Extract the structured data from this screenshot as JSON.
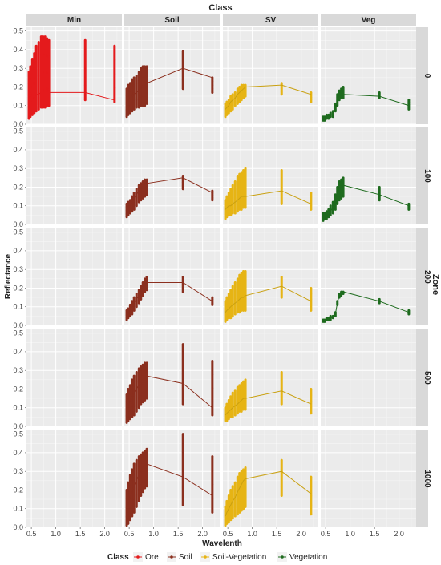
{
  "chart_data": {
    "type": "line",
    "facet_col_title": "Class",
    "facet_row_title": "Zone",
    "xlabel": "Wavelenth",
    "ylabel": "Reflectance",
    "xlim": [
      0.4,
      2.35
    ],
    "ylim": [
      0,
      0.52
    ],
    "x_ticks": [
      0.5,
      1.0,
      1.5,
      2.0
    ],
    "x_tick_labels": [
      "0.5",
      "1.0",
      "1.5",
      "2.0"
    ],
    "y_ticks": [
      0.0,
      0.1,
      0.2,
      0.3,
      0.4,
      0.5
    ],
    "y_tick_labels": [
      "0.0",
      "0.1",
      "0.2",
      "0.3",
      "0.4",
      "0.5"
    ],
    "grid": true,
    "legend": {
      "title": "Class",
      "position": "bottom",
      "items": [
        {
          "label": "Ore",
          "color": "#e41a1c"
        },
        {
          "label": "Soil",
          "color": "#8b2f1e"
        },
        {
          "label": "Soil-Vegetation",
          "color": "#e6b415"
        },
        {
          "label": "Vegetation",
          "color": "#1e6b1e"
        }
      ]
    },
    "columns": [
      "Min",
      "Soil",
      "SV",
      "Veg"
    ],
    "rows": [
      "0",
      "100",
      "200",
      "500",
      "1000"
    ],
    "bands": [
      0.45,
      0.48,
      0.52,
      0.56,
      0.6,
      0.65,
      0.7,
      0.74,
      0.78,
      0.82,
      0.86,
      1.6,
      2.2
    ],
    "panels": [
      {
        "col": "Min",
        "row": "0",
        "color": "#e41a1c",
        "mean": [
          0.14,
          0.15,
          0.16,
          0.16,
          0.16,
          0.16,
          0.17,
          0.17,
          0.17,
          0.17,
          0.17,
          0.17,
          0.13
        ],
        "min": [
          0.03,
          0.04,
          0.05,
          0.06,
          0.07,
          0.08,
          0.09,
          0.09,
          0.09,
          0.1,
          0.1,
          0.13,
          0.12
        ],
        "max": [
          0.28,
          0.31,
          0.35,
          0.38,
          0.42,
          0.44,
          0.47,
          0.47,
          0.47,
          0.46,
          0.45,
          0.45,
          0.42
        ]
      },
      {
        "col": "Soil",
        "row": "0",
        "color": "#8b2f1e",
        "mean": [
          0.12,
          0.13,
          0.14,
          0.15,
          0.16,
          0.17,
          0.18,
          0.19,
          0.2,
          0.21,
          0.22,
          0.3,
          0.25
        ],
        "min": [
          0.04,
          0.05,
          0.06,
          0.07,
          0.08,
          0.09,
          0.09,
          0.1,
          0.1,
          0.1,
          0.11,
          0.19,
          0.17
        ],
        "max": [
          0.19,
          0.21,
          0.22,
          0.24,
          0.25,
          0.26,
          0.28,
          0.3,
          0.31,
          0.31,
          0.31,
          0.39,
          0.25
        ]
      },
      {
        "col": "SV",
        "row": "0",
        "color": "#e6b415",
        "mean": [
          0.08,
          0.09,
          0.1,
          0.12,
          0.13,
          0.14,
          0.16,
          0.17,
          0.18,
          0.19,
          0.2,
          0.21,
          0.16
        ],
        "min": [
          0.04,
          0.05,
          0.06,
          0.07,
          0.08,
          0.1,
          0.11,
          0.12,
          0.13,
          0.14,
          0.15,
          0.16,
          0.12
        ],
        "max": [
          0.11,
          0.12,
          0.13,
          0.15,
          0.16,
          0.17,
          0.19,
          0.2,
          0.21,
          0.21,
          0.21,
          0.22,
          0.17
        ]
      },
      {
        "col": "Veg",
        "row": "0",
        "color": "#1e6b1e",
        "mean": [
          0.03,
          0.03,
          0.04,
          0.04,
          0.05,
          0.05,
          0.09,
          0.13,
          0.15,
          0.16,
          0.16,
          0.15,
          0.1
        ],
        "min": [
          0.02,
          0.02,
          0.03,
          0.03,
          0.04,
          0.04,
          0.07,
          0.1,
          0.13,
          0.14,
          0.14,
          0.14,
          0.08
        ],
        "max": [
          0.04,
          0.04,
          0.05,
          0.05,
          0.06,
          0.07,
          0.11,
          0.16,
          0.18,
          0.19,
          0.2,
          0.17,
          0.13
        ]
      },
      {
        "col": "Soil",
        "row": "100",
        "color": "#8b2f1e",
        "mean": [
          0.08,
          0.09,
          0.1,
          0.12,
          0.14,
          0.16,
          0.18,
          0.19,
          0.2,
          0.21,
          0.22,
          0.25,
          0.17
        ],
        "min": [
          0.04,
          0.05,
          0.06,
          0.07,
          0.08,
          0.1,
          0.12,
          0.13,
          0.14,
          0.15,
          0.16,
          0.19,
          0.13
        ],
        "max": [
          0.11,
          0.12,
          0.13,
          0.15,
          0.17,
          0.19,
          0.21,
          0.22,
          0.23,
          0.24,
          0.24,
          0.26,
          0.18
        ]
      },
      {
        "col": "SV",
        "row": "100",
        "color": "#e6b415",
        "mean": [
          0.08,
          0.09,
          0.1,
          0.1,
          0.11,
          0.12,
          0.13,
          0.14,
          0.15,
          0.15,
          0.15,
          0.18,
          0.11
        ],
        "min": [
          0.03,
          0.04,
          0.05,
          0.05,
          0.06,
          0.06,
          0.07,
          0.08,
          0.08,
          0.09,
          0.09,
          0.11,
          0.08
        ],
        "max": [
          0.13,
          0.15,
          0.17,
          0.19,
          0.21,
          0.23,
          0.26,
          0.27,
          0.28,
          0.29,
          0.3,
          0.29,
          0.17
        ]
      },
      {
        "col": "Veg",
        "row": "100",
        "color": "#1e6b1e",
        "mean": [
          0.04,
          0.04,
          0.05,
          0.06,
          0.07,
          0.09,
          0.12,
          0.16,
          0.19,
          0.2,
          0.21,
          0.16,
          0.1
        ],
        "min": [
          0.02,
          0.03,
          0.03,
          0.04,
          0.05,
          0.06,
          0.08,
          0.11,
          0.13,
          0.14,
          0.15,
          0.13,
          0.08
        ],
        "max": [
          0.06,
          0.06,
          0.07,
          0.08,
          0.1,
          0.12,
          0.16,
          0.2,
          0.23,
          0.24,
          0.25,
          0.2,
          0.11
        ]
      },
      {
        "col": "Soil",
        "row": "200",
        "color": "#8b2f1e",
        "mean": [
          0.06,
          0.07,
          0.09,
          0.1,
          0.12,
          0.14,
          0.16,
          0.18,
          0.2,
          0.22,
          0.23,
          0.23,
          0.13
        ],
        "min": [
          0.03,
          0.04,
          0.05,
          0.06,
          0.08,
          0.1,
          0.12,
          0.14,
          0.16,
          0.18,
          0.19,
          0.18,
          0.11
        ],
        "max": [
          0.08,
          0.09,
          0.11,
          0.13,
          0.15,
          0.17,
          0.19,
          0.21,
          0.23,
          0.25,
          0.26,
          0.26,
          0.15
        ]
      },
      {
        "col": "SV",
        "row": "200",
        "color": "#e6b415",
        "mean": [
          0.07,
          0.08,
          0.09,
          0.1,
          0.11,
          0.12,
          0.13,
          0.14,
          0.15,
          0.15,
          0.16,
          0.21,
          0.13
        ],
        "min": [
          0.02,
          0.03,
          0.04,
          0.04,
          0.05,
          0.06,
          0.07,
          0.07,
          0.08,
          0.08,
          0.08,
          0.15,
          0.08
        ],
        "max": [
          0.13,
          0.15,
          0.17,
          0.19,
          0.21,
          0.23,
          0.25,
          0.27,
          0.28,
          0.29,
          0.29,
          0.26,
          0.2
        ]
      },
      {
        "col": "Veg",
        "row": "200",
        "color": "#1e6b1e",
        "mean": [
          0.02,
          0.02,
          0.03,
          0.03,
          0.04,
          0.04,
          0.06,
          0.12,
          0.16,
          0.17,
          0.18,
          0.13,
          0.07
        ],
        "min": [
          0.02,
          0.02,
          0.03,
          0.03,
          0.03,
          0.04,
          0.05,
          0.11,
          0.15,
          0.16,
          0.17,
          0.12,
          0.06
        ],
        "max": [
          0.03,
          0.03,
          0.04,
          0.04,
          0.05,
          0.05,
          0.07,
          0.13,
          0.17,
          0.18,
          0.18,
          0.14,
          0.08
        ]
      },
      {
        "col": "Soil",
        "row": "500",
        "color": "#8b2f1e",
        "mean": [
          0.1,
          0.12,
          0.14,
          0.16,
          0.18,
          0.2,
          0.22,
          0.24,
          0.25,
          0.26,
          0.27,
          0.23,
          0.1
        ],
        "min": [
          0.02,
          0.03,
          0.04,
          0.05,
          0.06,
          0.08,
          0.1,
          0.12,
          0.13,
          0.14,
          0.15,
          0.12,
          0.06
        ],
        "max": [
          0.17,
          0.2,
          0.22,
          0.25,
          0.27,
          0.29,
          0.31,
          0.32,
          0.33,
          0.34,
          0.34,
          0.44,
          0.35
        ]
      },
      {
        "col": "SV",
        "row": "500",
        "color": "#e6b415",
        "mean": [
          0.06,
          0.07,
          0.08,
          0.09,
          0.1,
          0.11,
          0.12,
          0.13,
          0.14,
          0.15,
          0.15,
          0.19,
          0.12
        ],
        "min": [
          0.03,
          0.03,
          0.04,
          0.05,
          0.05,
          0.06,
          0.07,
          0.08,
          0.08,
          0.09,
          0.09,
          0.12,
          0.07
        ],
        "max": [
          0.1,
          0.12,
          0.14,
          0.16,
          0.18,
          0.19,
          0.21,
          0.22,
          0.23,
          0.24,
          0.25,
          0.29,
          0.2
        ]
      },
      {
        "col": "Soil",
        "row": "1000",
        "color": "#8b2f1e",
        "mean": [
          0.1,
          0.13,
          0.16,
          0.19,
          0.22,
          0.25,
          0.28,
          0.3,
          0.32,
          0.33,
          0.34,
          0.27,
          0.17
        ],
        "min": [
          0.01,
          0.02,
          0.04,
          0.06,
          0.08,
          0.11,
          0.14,
          0.17,
          0.19,
          0.21,
          0.22,
          0.12,
          0.08
        ],
        "max": [
          0.2,
          0.24,
          0.28,
          0.31,
          0.34,
          0.36,
          0.38,
          0.39,
          0.4,
          0.41,
          0.42,
          0.5,
          0.38
        ]
      },
      {
        "col": "SV",
        "row": "1000",
        "color": "#e6b415",
        "mean": [
          0.06,
          0.08,
          0.1,
          0.12,
          0.14,
          0.16,
          0.19,
          0.21,
          0.23,
          0.25,
          0.26,
          0.3,
          0.18
        ],
        "min": [
          0.01,
          0.02,
          0.03,
          0.04,
          0.05,
          0.06,
          0.07,
          0.08,
          0.09,
          0.1,
          0.11,
          0.17,
          0.07
        ],
        "max": [
          0.11,
          0.14,
          0.17,
          0.2,
          0.22,
          0.24,
          0.27,
          0.29,
          0.3,
          0.31,
          0.32,
          0.36,
          0.27
        ]
      }
    ]
  }
}
